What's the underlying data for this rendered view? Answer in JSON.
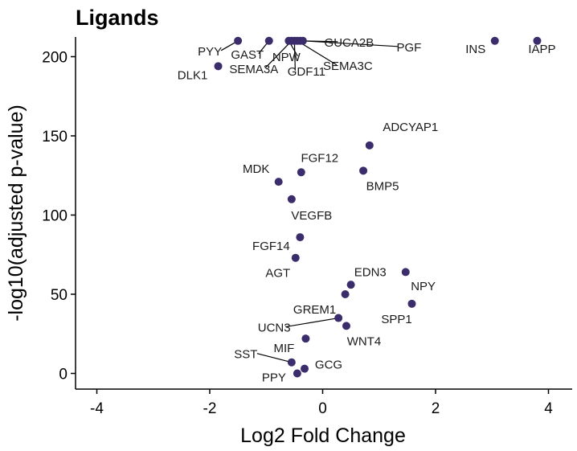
{
  "chart_data": {
    "type": "scatter",
    "title": "Ligands",
    "xlabel": "Log2 Fold Change",
    "ylabel": "-log10(adjusted p-value)",
    "xlim": [
      -4.4,
      4.4
    ],
    "ylim": [
      -10,
      210
    ],
    "xticks": [
      "-4",
      "-2",
      "0",
      "2",
      "4"
    ],
    "yticks": [
      "0",
      "50",
      "100",
      "150",
      "200"
    ],
    "grid": false,
    "point_color": "#3b2c6b",
    "points": [
      {
        "label": "PYY",
        "x": -1.5,
        "y": 210
      },
      {
        "label": "GAST",
        "x": -0.95,
        "y": 210
      },
      {
        "label": "NPW",
        "x": -0.6,
        "y": 210
      },
      {
        "label": "SEMA3A",
        "x": -0.55,
        "y": 210
      },
      {
        "label": "GDF11",
        "x": -0.5,
        "y": 210
      },
      {
        "label": "SEMA3C",
        "x": -0.45,
        "y": 210
      },
      {
        "label": "GUCA2B",
        "x": -0.4,
        "y": 210
      },
      {
        "label": "PGF",
        "x": -0.35,
        "y": 210
      },
      {
        "label": "INS",
        "x": 3.05,
        "y": 210
      },
      {
        "label": "IAPP",
        "x": 3.8,
        "y": 210
      },
      {
        "label": "DLK1",
        "x": -1.85,
        "y": 194
      },
      {
        "label": "ADCYAP1",
        "x": 0.83,
        "y": 144
      },
      {
        "label": "FGF12",
        "x": -0.38,
        "y": 127
      },
      {
        "label": "BMP5",
        "x": 0.72,
        "y": 128
      },
      {
        "label": "MDK",
        "x": -0.78,
        "y": 121
      },
      {
        "label": "VEGFB",
        "x": -0.55,
        "y": 110
      },
      {
        "label": "FGF14",
        "x": -0.4,
        "y": 86
      },
      {
        "label": "AGT",
        "x": -0.48,
        "y": 73
      },
      {
        "label": "EDN3",
        "x": 1.47,
        "y": 64
      },
      {
        "label": "NPY",
        "x": 0.5,
        "y": 56
      },
      {
        "label": "GREM1",
        "x": 0.4,
        "y": 50
      },
      {
        "label": "SPP1",
        "x": 1.58,
        "y": 44
      },
      {
        "label": "UCN3",
        "x": 0.28,
        "y": 35
      },
      {
        "label": "WNT4",
        "x": 0.42,
        "y": 30
      },
      {
        "label": "MIF",
        "x": -0.3,
        "y": 22
      },
      {
        "label": "SST",
        "x": -0.55,
        "y": 7
      },
      {
        "label": "GCG",
        "x": -0.32,
        "y": 3
      },
      {
        "label": "PPY",
        "x": -0.45,
        "y": 0
      }
    ]
  }
}
